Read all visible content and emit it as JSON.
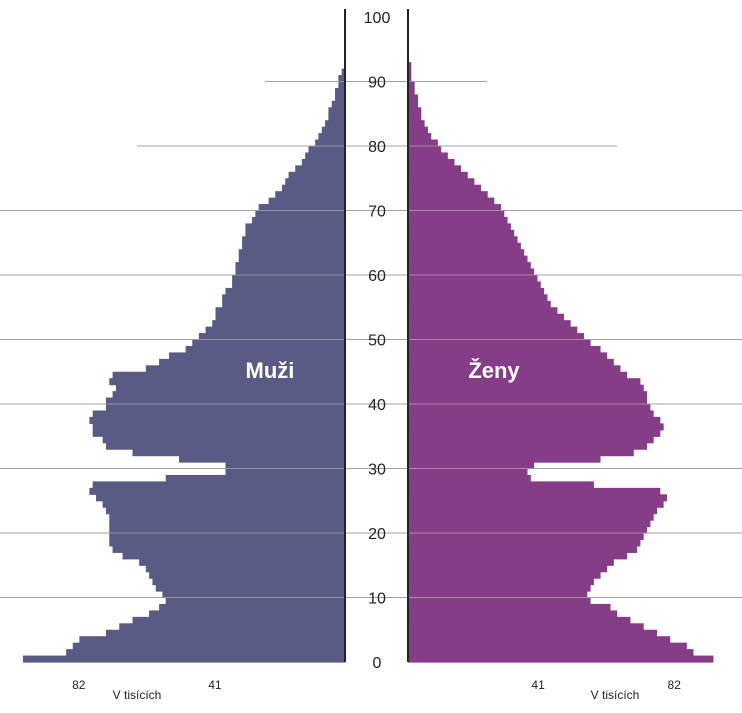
{
  "chart_data": {
    "type": "population-pyramid",
    "y_axis": {
      "ylim": [
        0,
        100
      ],
      "ticks": [
        0,
        10,
        20,
        30,
        40,
        50,
        60,
        70,
        80,
        90,
        100
      ]
    },
    "x_axis": {
      "xlim": [
        0,
        92
      ],
      "ticks": [
        41,
        82
      ],
      "unit_label": "V tisících"
    },
    "grid": true,
    "colors": {
      "male": "#5a5b85",
      "female": "#843d86",
      "grid": "#a0a0a0",
      "axis": "#222222"
    },
    "series": [
      {
        "name": "Muži",
        "side": "left",
        "ages": [
          0,
          1,
          2,
          3,
          4,
          5,
          6,
          7,
          8,
          9,
          10,
          11,
          12,
          13,
          14,
          15,
          16,
          17,
          18,
          19,
          20,
          21,
          22,
          23,
          24,
          25,
          26,
          27,
          28,
          29,
          30,
          31,
          32,
          33,
          34,
          35,
          36,
          37,
          38,
          39,
          40,
          41,
          42,
          43,
          44,
          45,
          46,
          47,
          48,
          49,
          50,
          51,
          52,
          53,
          54,
          55,
          56,
          57,
          58,
          59,
          60,
          61,
          62,
          63,
          64,
          65,
          66,
          67,
          68,
          69,
          70,
          71,
          72,
          73,
          74,
          75,
          76,
          77,
          78,
          79,
          80,
          81,
          82,
          83,
          84,
          85,
          86,
          87,
          88,
          89,
          90,
          91
        ],
        "values": [
          97,
          84,
          82,
          80,
          72,
          68,
          64,
          59,
          56,
          54,
          55,
          57,
          58,
          59,
          60,
          62,
          67,
          70,
          71,
          71,
          71,
          71,
          71,
          72,
          73,
          75,
          77,
          76,
          54,
          36,
          36,
          50,
          64,
          72,
          73,
          76,
          76,
          77,
          76,
          72,
          72,
          70,
          69,
          71,
          70,
          60,
          56,
          53,
          48,
          46,
          44,
          42,
          40,
          39,
          39,
          37,
          37,
          36,
          34,
          34,
          33,
          33,
          32,
          32,
          31,
          31,
          30,
          30,
          28,
          27,
          26,
          23,
          21,
          19,
          18,
          17,
          15,
          13,
          12,
          11,
          9,
          8,
          7,
          6,
          5,
          5,
          4,
          3,
          3,
          2,
          2,
          1
        ]
      },
      {
        "name": "Ženy",
        "side": "right",
        "ages": [
          0,
          1,
          2,
          3,
          4,
          5,
          6,
          7,
          8,
          9,
          10,
          11,
          12,
          13,
          14,
          15,
          16,
          17,
          18,
          19,
          20,
          21,
          22,
          23,
          24,
          25,
          26,
          27,
          28,
          29,
          30,
          31,
          32,
          33,
          34,
          35,
          36,
          37,
          38,
          39,
          40,
          41,
          42,
          43,
          44,
          45,
          46,
          47,
          48,
          49,
          50,
          51,
          52,
          53,
          54,
          55,
          56,
          57,
          58,
          59,
          60,
          61,
          62,
          63,
          64,
          65,
          66,
          67,
          68,
          69,
          70,
          71,
          72,
          73,
          74,
          75,
          76,
          77,
          78,
          79,
          80,
          81,
          82,
          83,
          84,
          85,
          86,
          87,
          88,
          89,
          90,
          91,
          92
        ],
        "values": [
          92,
          86,
          84,
          79,
          75,
          71,
          67,
          63,
          61,
          55,
          54,
          55,
          56,
          58,
          60,
          62,
          66,
          69,
          70,
          71,
          72,
          73,
          74,
          75,
          77,
          78,
          76,
          56,
          37,
          36,
          38,
          58,
          68,
          72,
          74,
          76,
          77,
          76,
          74,
          73,
          72,
          72,
          71,
          70,
          66,
          64,
          62,
          60,
          58,
          55,
          53,
          51,
          49,
          47,
          45,
          43,
          42,
          41,
          40,
          39,
          38,
          37,
          36,
          35,
          34,
          33,
          32,
          31,
          30,
          29,
          28,
          26,
          24,
          22,
          20,
          18,
          16,
          14,
          12,
          10,
          9,
          7,
          6,
          5,
          4,
          4,
          3,
          3,
          2,
          2,
          1,
          1,
          1
        ]
      }
    ]
  },
  "labels": {
    "male": "Muži",
    "female": "Ženy"
  }
}
